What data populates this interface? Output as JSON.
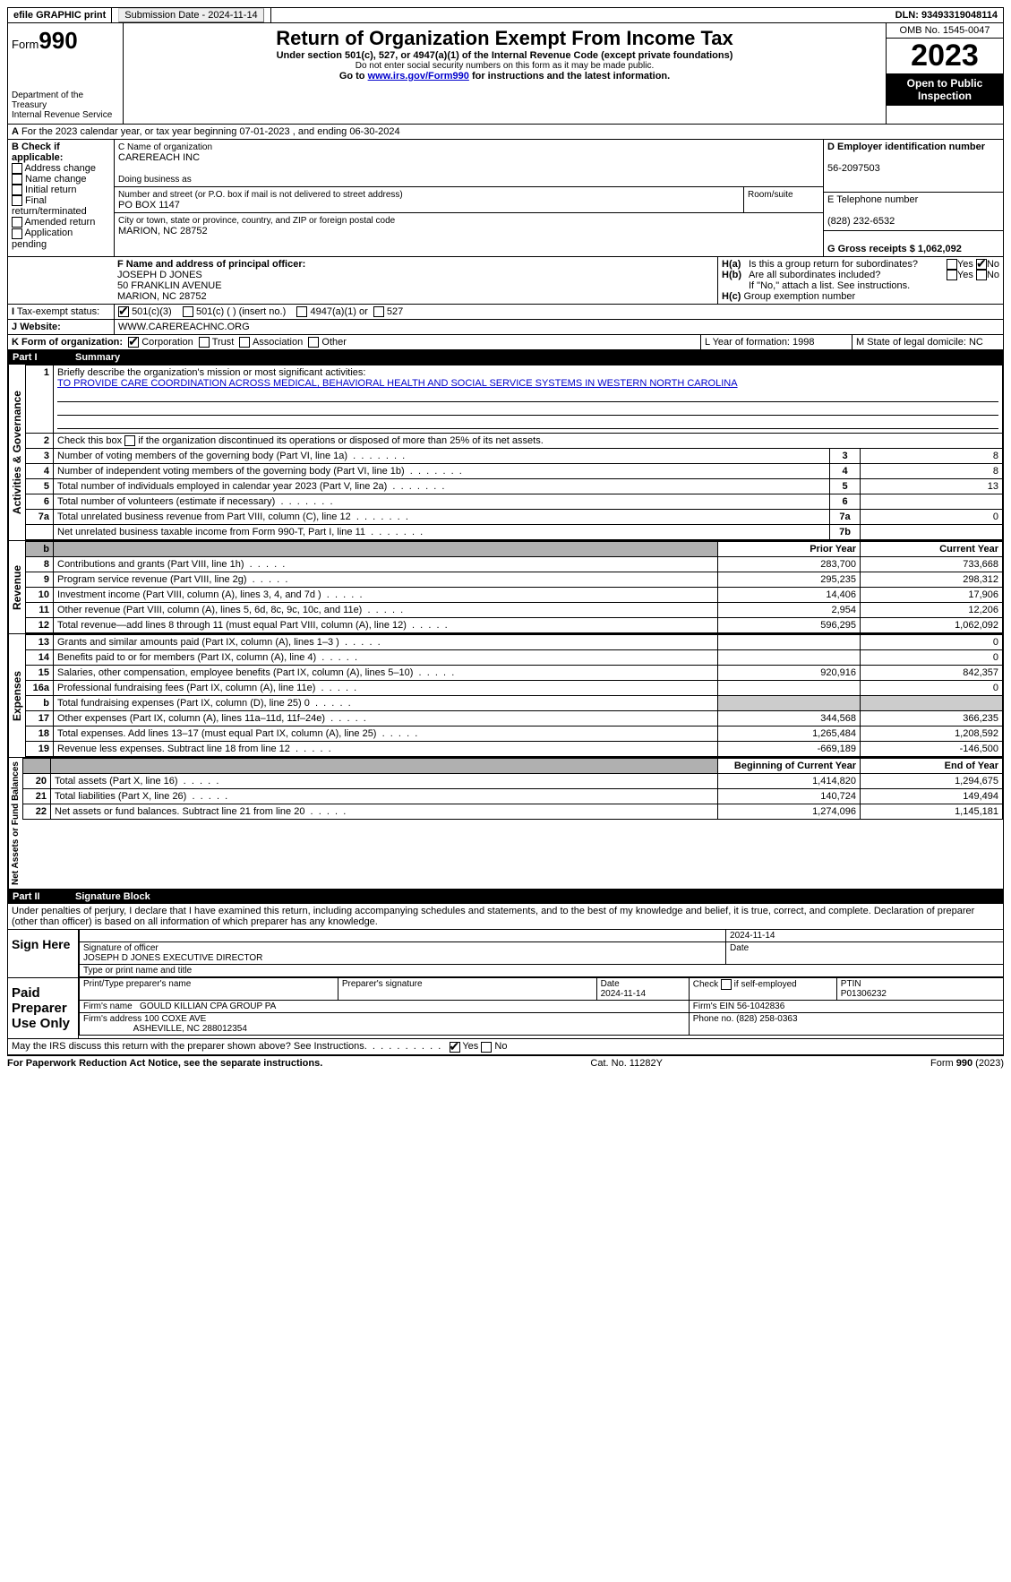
{
  "topbar": {
    "efile": "efile GRAPHIC print",
    "submission_label": "Submission Date - 2024-11-14",
    "dln": "DLN: 93493319048114"
  },
  "header": {
    "form_prefix": "Form",
    "form_number": "990",
    "dept": "Department of the Treasury",
    "irs": "Internal Revenue Service",
    "title": "Return of Organization Exempt From Income Tax",
    "subtitle": "Under section 501(c), 527, or 4947(a)(1) of the Internal Revenue Code (except private foundations)",
    "ssn_note": "Do not enter social security numbers on this form as it may be made public.",
    "goto_prefix": "Go to ",
    "goto_link": "www.irs.gov/Form990",
    "goto_suffix": " for instructions and the latest information.",
    "omb": "OMB No. 1545-0047",
    "year": "2023",
    "inspection": "Open to Public Inspection"
  },
  "lineA": "For the 2023 calendar year, or tax year beginning 07-01-2023    , and ending 06-30-2024",
  "boxB": {
    "label": "B Check if applicable:",
    "opts": [
      "Address change",
      "Name change",
      "Initial return",
      "Final return/terminated",
      "Amended return",
      "Application pending"
    ]
  },
  "boxC": {
    "label": "C Name of organization",
    "name": "CAREREACH INC",
    "dba_label": "Doing business as",
    "street_label": "Number and street (or P.O. box if mail is not delivered to street address)",
    "room_label": "Room/suite",
    "street": "PO BOX 1147",
    "city_label": "City or town, state or province, country, and ZIP or foreign postal code",
    "city": "MARION, NC  28752"
  },
  "boxD": {
    "label": "D Employer identification number",
    "value": "56-2097503"
  },
  "boxE": {
    "label": "E Telephone number",
    "value": "(828) 232-6532"
  },
  "boxG": {
    "label": "G Gross receipts $ 1,062,092"
  },
  "boxF": {
    "label": "F  Name and address of principal officer:",
    "name": "JOSEPH D JONES",
    "addr1": "50 FRANKLIN AVENUE",
    "addr2": "MARION, NC  28752"
  },
  "boxH": {
    "a": "Is this a group return for subordinates?",
    "b": "Are all subordinates included?",
    "note": "If \"No,\" attach a list. See instructions.",
    "c": "Group exemption number"
  },
  "boxI": {
    "label": "Tax-exempt status:",
    "o1": "501(c)(3)",
    "o2": "501(c) (  ) (insert no.)",
    "o3": "4947(a)(1) or",
    "o4": "527"
  },
  "boxJ": {
    "label": "Website:",
    "value": "WWW.CAREREACHNC.ORG"
  },
  "boxK": {
    "label": "K Form of organization:",
    "corp": "Corporation",
    "trust": "Trust",
    "assoc": "Association",
    "other": "Other"
  },
  "boxL": {
    "label": "L Year of formation: 1998"
  },
  "boxM": {
    "label": "M State of legal domicile: NC"
  },
  "part1": {
    "num": "Part I",
    "title": "Summary"
  },
  "summary": {
    "line1_label": "Briefly describe the organization's mission or most significant activities:",
    "line1_text": "TO PROVIDE CARE COORDINATION ACROSS MEDICAL, BEHAVIORAL HEALTH AND SOCIAL SERVICE SYSTEMS IN WESTERN NORTH CAROLINA",
    "line2": "Check this box      if the organization discontinued its operations or disposed of more than 25% of its net assets.",
    "governance": [
      {
        "n": "3",
        "t": "Number of voting members of the governing body (Part VI, line 1a)",
        "v": "8"
      },
      {
        "n": "4",
        "t": "Number of independent voting members of the governing body (Part VI, line 1b)",
        "v": "8"
      },
      {
        "n": "5",
        "t": "Total number of individuals employed in calendar year 2023 (Part V, line 2a)",
        "v": "13"
      },
      {
        "n": "6",
        "t": "Total number of volunteers (estimate if necessary)",
        "v": ""
      },
      {
        "n": "7a",
        "t": "Total unrelated business revenue from Part VIII, column (C), line 12",
        "v": "0"
      },
      {
        "n": "",
        "t": "Net unrelated business taxable income from Form 990-T, Part I, line 11",
        "b": "7b",
        "v": ""
      }
    ],
    "col_prior": "Prior Year",
    "col_current": "Current Year",
    "revenue": [
      {
        "n": "8",
        "t": "Contributions and grants (Part VIII, line 1h)",
        "p": "283,700",
        "c": "733,668"
      },
      {
        "n": "9",
        "t": "Program service revenue (Part VIII, line 2g)",
        "p": "295,235",
        "c": "298,312"
      },
      {
        "n": "10",
        "t": "Investment income (Part VIII, column (A), lines 3, 4, and 7d )",
        "p": "14,406",
        "c": "17,906"
      },
      {
        "n": "11",
        "t": "Other revenue (Part VIII, column (A), lines 5, 6d, 8c, 9c, 10c, and 11e)",
        "p": "2,954",
        "c": "12,206"
      },
      {
        "n": "12",
        "t": "Total revenue—add lines 8 through 11 (must equal Part VIII, column (A), line 12)",
        "p": "596,295",
        "c": "1,062,092"
      }
    ],
    "expenses": [
      {
        "n": "13",
        "t": "Grants and similar amounts paid (Part IX, column (A), lines 1–3 )",
        "p": "",
        "c": "0"
      },
      {
        "n": "14",
        "t": "Benefits paid to or for members (Part IX, column (A), line 4)",
        "p": "",
        "c": "0"
      },
      {
        "n": "15",
        "t": "Salaries, other compensation, employee benefits (Part IX, column (A), lines 5–10)",
        "p": "920,916",
        "c": "842,357"
      },
      {
        "n": "16a",
        "t": "Professional fundraising fees (Part IX, column (A), line 11e)",
        "p": "",
        "c": "0"
      },
      {
        "n": "b",
        "t": "Total fundraising expenses (Part IX, column (D), line 25) 0",
        "p": "SHADE",
        "c": "SHADE"
      },
      {
        "n": "17",
        "t": "Other expenses (Part IX, column (A), lines 11a–11d, 11f–24e)",
        "p": "344,568",
        "c": "366,235"
      },
      {
        "n": "18",
        "t": "Total expenses. Add lines 13–17 (must equal Part IX, column (A), line 25)",
        "p": "1,265,484",
        "c": "1,208,592"
      },
      {
        "n": "19",
        "t": "Revenue less expenses. Subtract line 18 from line 12",
        "p": "-669,189",
        "c": "-146,500"
      }
    ],
    "col_begin": "Beginning of Current Year",
    "col_end": "End of Year",
    "netassets": [
      {
        "n": "20",
        "t": "Total assets (Part X, line 16)",
        "p": "1,414,820",
        "c": "1,294,675"
      },
      {
        "n": "21",
        "t": "Total liabilities (Part X, line 26)",
        "p": "140,724",
        "c": "149,494"
      },
      {
        "n": "22",
        "t": "Net assets or fund balances. Subtract line 21 from line 20",
        "p": "1,274,096",
        "c": "1,145,181"
      }
    ]
  },
  "sections": {
    "gov": "Activities & Governance",
    "rev": "Revenue",
    "exp": "Expenses",
    "net": "Net Assets or Fund Balances"
  },
  "part2": {
    "num": "Part II",
    "title": "Signature Block"
  },
  "penalties": "Under penalties of perjury, I declare that I have examined this return, including accompanying schedules and statements, and to the best of my knowledge and belief, it is true, correct, and complete. Declaration of preparer (other than officer) is based on all information of which preparer has any knowledge.",
  "sign": {
    "here": "Sign Here",
    "date": "2024-11-14",
    "sig_label": "Signature of officer",
    "date_label": "Date",
    "officer": "JOSEPH D JONES EXECUTIVE DIRECTOR",
    "type_label": "Type or print name and title"
  },
  "preparer": {
    "title": "Paid Preparer Use Only",
    "h_name": "Print/Type preparer's name",
    "h_sig": "Preparer's signature",
    "h_date": "Date",
    "date": "2024-11-14",
    "check_label": "Check        if self-employed",
    "ptin_label": "PTIN",
    "ptin": "P01306232",
    "firm_name_label": "Firm's name",
    "firm_name": "GOULD KILLIAN CPA GROUP PA",
    "firm_ein_label": "Firm's EIN",
    "firm_ein": "56-1042836",
    "firm_addr_label": "Firm's address",
    "firm_addr1": "100 COXE AVE",
    "firm_addr2": "ASHEVILLE, NC  288012354",
    "phone_label": "Phone no.",
    "phone": "(828) 258-0363"
  },
  "discuss": "May the IRS discuss this return with the preparer shown above? See Instructions.",
  "footer": {
    "left": "For Paperwork Reduction Act Notice, see the separate instructions.",
    "mid": "Cat. No. 11282Y",
    "right_prefix": "Form ",
    "right_form": "990",
    "right_year": " (2023)"
  }
}
